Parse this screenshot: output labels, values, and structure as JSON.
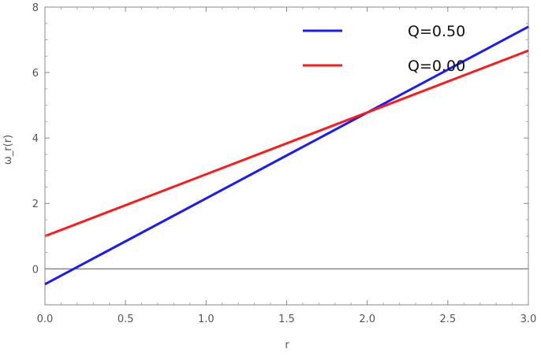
{
  "chart_data": {
    "type": "line",
    "title": "",
    "xlabel": "r",
    "ylabel": "ω_r(r)",
    "xlim": [
      0,
      3
    ],
    "ylim": [
      -1.1,
      8
    ],
    "xticks": [
      "0.0",
      "0.5",
      "1.0",
      "1.5",
      "2.0",
      "2.5",
      "3.0"
    ],
    "yticks": [
      "0",
      "2",
      "4",
      "6",
      "8"
    ],
    "grid": false,
    "zero_line": true,
    "legend_position": "top-right",
    "series": [
      {
        "name": "Q=0.50",
        "color": "#1a1aff",
        "x": [
          0,
          3
        ],
        "y": [
          -0.47,
          7.4
        ]
      },
      {
        "name": "Q=0.00",
        "color": "#ff1a1a",
        "x": [
          0,
          3
        ],
        "y": [
          1.0,
          6.67
        ]
      }
    ]
  }
}
